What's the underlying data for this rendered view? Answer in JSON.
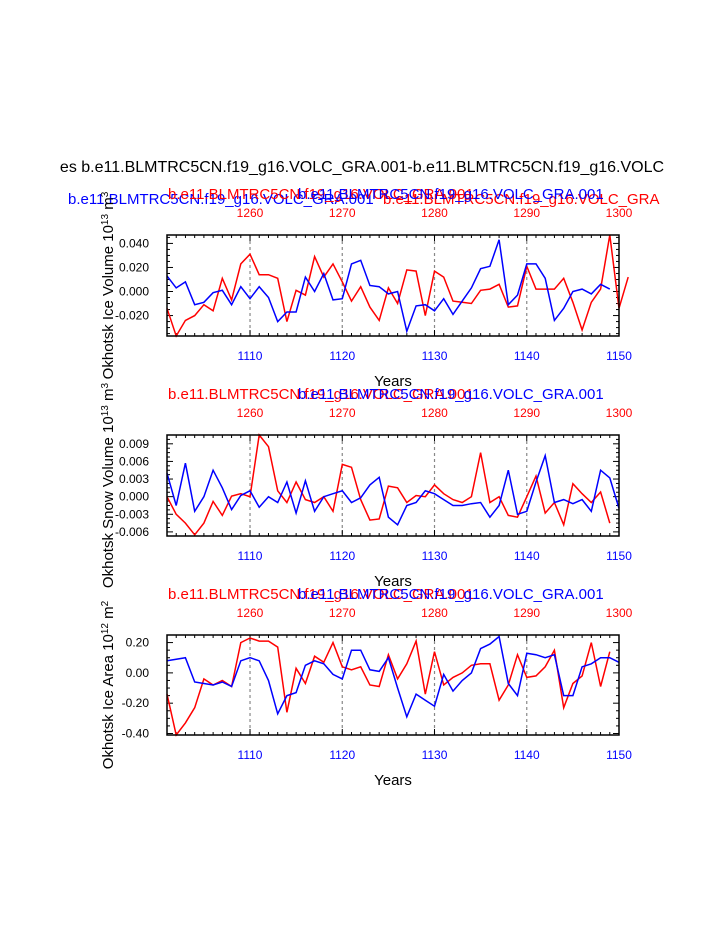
{
  "main_title": "es b.e11.BLMTRC5CN.f19_g16.VOLC_GRA.001-b.e11.BLMTRC5CN.f19_g16.VOLC",
  "overlap_title": {
    "blue": "b.e11.BLMTRC5CN.f19_g16.VOLC_GRA.001",
    "red": "b.e11.BLMTRC5CN.f19_g16.VOLC_GRA"
  },
  "colors": {
    "red_series": "#ff0000",
    "blue_series": "#0000ff",
    "axis": "#000000",
    "grid": "#888888"
  },
  "chart_data": [
    {
      "type": "line",
      "panel": "ice-volume",
      "title_red": "b.e11.BLMTRC5CN.f19_g16.VOLC_GRA.001",
      "title_blue": "b.e11.BLMTRC5CN.f19_g16.VOLC_GRA.001",
      "ylabel_main": "Okhotsk Ice Volume 10",
      "ylabel_exp": "13",
      "ylabel_unit": " m",
      "ylabel_unit_exp": "3",
      "xlabel": "Years",
      "xlim_bottom": [
        1101,
        1150
      ],
      "xlim_top": [
        1251,
        1300
      ],
      "ylim": [
        -0.037,
        0.047
      ],
      "yticks": [
        -0.02,
        0.0,
        0.02,
        0.04
      ],
      "yticklabels": [
        "-0.020",
        "0.000",
        "0.020",
        "0.040"
      ],
      "xticks_bottom": [
        1110,
        1120,
        1130,
        1140,
        1150
      ],
      "xticks_top": [
        1260,
        1270,
        1280,
        1290,
        1300
      ],
      "gridlines": [
        1110,
        1120,
        1130,
        1140
      ],
      "series": [
        {
          "name": "b.e11.BLMTRC5CN.f19_g16.VOLC_GRA.001 (years 1251-1300)",
          "color": "red",
          "axis": "top",
          "values": [
            -0.014,
            -0.037,
            -0.024,
            -0.02,
            -0.011,
            -0.016,
            0.011,
            -0.007,
            0.023,
            0.031,
            0.014,
            0.014,
            0.011,
            -0.025,
            0.001,
            -0.003,
            0.029,
            0.012,
            0.023,
            0.008,
            -0.008,
            0.004,
            -0.013,
            -0.024,
            0.003,
            -0.01,
            0.018,
            0.017,
            -0.02,
            0.017,
            0.012,
            -0.008,
            -0.009,
            -0.01,
            0.001,
            0.002,
            0.006,
            -0.013,
            -0.012,
            0.021,
            0.002,
            0.002,
            0.002,
            0.011,
            -0.009,
            -0.032,
            -0.009,
            0.002,
            0.047,
            -0.014,
            0.012
          ]
        },
        {
          "name": "b.e11.BLMTRC5CN.f19_g16.VOLC_GRA.001 (years 1101-1150)",
          "color": "blue",
          "axis": "bottom",
          "values": [
            0.013,
            0.003,
            0.008,
            -0.011,
            -0.009,
            -0.001,
            0.001,
            -0.011,
            0.004,
            -0.006,
            0.004,
            -0.005,
            -0.025,
            -0.017,
            -0.017,
            0.012,
            0.0,
            0.015,
            -0.007,
            -0.006,
            0.023,
            0.026,
            0.005,
            0.004,
            -0.002,
            0.0,
            -0.033,
            -0.012,
            -0.011,
            -0.016,
            -0.006,
            -0.019,
            -0.008,
            0.003,
            0.019,
            0.021,
            0.043,
            -0.011,
            -0.003,
            0.023,
            0.023,
            0.011,
            -0.024,
            -0.014,
            0.0,
            0.002,
            -0.002,
            0.006,
            0.002
          ]
        }
      ]
    },
    {
      "type": "line",
      "panel": "snow-volume",
      "title_red": "b.e11.BLMTRC5CN.f19_g16.VOLC_GRA.001",
      "title_blue": "b.e11.BLMTRC5CN.f19_g16.VOLC_GRA.001",
      "ylabel_main": "Okhotsk Snow Volume 10",
      "ylabel_exp": "13",
      "ylabel_unit": " m",
      "ylabel_unit_exp": "3",
      "xlabel": "Years",
      "xlim_bottom": [
        1101,
        1150
      ],
      "xlim_top": [
        1251,
        1300
      ],
      "ylim": [
        -0.0067,
        0.0105
      ],
      "yticks": [
        -0.006,
        -0.003,
        0.0,
        0.003,
        0.006,
        0.009
      ],
      "yticklabels": [
        "-0.006",
        "-0.003",
        "0.000",
        "0.003",
        "0.006",
        "0.009"
      ],
      "xticks_bottom": [
        1110,
        1120,
        1130,
        1140,
        1150
      ],
      "xticks_top": [
        1260,
        1270,
        1280,
        1290,
        1300
      ],
      "gridlines": [
        1110,
        1120,
        1130,
        1140
      ],
      "series": [
        {
          "name": "b.e11.BLMTRC5CN.f19_g16.VOLC_GRA.001 (years 1251-1300)",
          "color": "red",
          "axis": "top",
          "values": [
            0.0,
            -0.003,
            -0.0045,
            -0.0065,
            -0.0045,
            -0.0008,
            -0.0032,
            0.0001,
            0.0005,
            0.0,
            0.0105,
            0.0085,
            0.001,
            -0.001,
            0.0025,
            -0.0005,
            -0.001,
            0.0,
            -0.0025,
            0.0055,
            0.005,
            -0.0005,
            -0.004,
            -0.0038,
            0.0018,
            0.0015,
            -0.001,
            0.0002,
            0.0,
            0.002,
            0.0005,
            -0.0005,
            -0.001,
            0.0,
            0.0075,
            -0.001,
            0.0,
            -0.0032,
            -0.0035,
            0.0,
            0.0035,
            -0.0028,
            -0.001,
            -0.0048,
            0.0022,
            0.0005,
            -0.001,
            0.0008,
            -0.0045
          ]
        },
        {
          "name": "b.e11.BLMTRC5CN.f19_g16.VOLC_GRA.001 (years 1101-1150)",
          "color": "blue",
          "axis": "bottom",
          "values": [
            0.004,
            -0.0015,
            0.0057,
            -0.0025,
            0.0,
            0.0045,
            0.0015,
            -0.0022,
            0.0002,
            0.001,
            -0.0018,
            0.0,
            -0.001,
            0.0025,
            -0.0028,
            0.0027,
            -0.0025,
            0.0,
            0.0005,
            0.001,
            -0.001,
            -0.0002,
            0.002,
            0.0033,
            -0.0035,
            -0.0048,
            -0.0015,
            -0.001,
            0.001,
            0.0005,
            -0.0005,
            -0.0015,
            -0.0015,
            -0.0012,
            -0.001,
            -0.0035,
            -0.0015,
            0.0045,
            -0.003,
            -0.0025,
            0.0025,
            0.007,
            -0.001,
            -0.0005,
            -0.0012,
            -0.0005,
            -0.0025,
            0.0045,
            0.0032,
            -0.002
          ]
        }
      ]
    },
    {
      "type": "line",
      "panel": "ice-area",
      "title_red": "b.e11.BLMTRC5CN.f19_g16.VOLC_GRA.001",
      "title_blue": "b.e11.BLMTRC5CN.f19_g16.VOLC_GRA.001",
      "ylabel_main": "Okhotsk Ice Area 10",
      "ylabel_exp": "12",
      "ylabel_unit": " m",
      "ylabel_unit_exp": "2",
      "xlabel": "Years",
      "xlim_bottom": [
        1101,
        1150
      ],
      "xlim_top": [
        1251,
        1300
      ],
      "ylim": [
        -0.41,
        0.25
      ],
      "yticks": [
        -0.4,
        -0.2,
        0.0,
        0.2
      ],
      "yticklabels": [
        "-0.40",
        "-0.20",
        "0.00",
        "0.20"
      ],
      "xticks_bottom": [
        1110,
        1120,
        1130,
        1140,
        1150
      ],
      "xticks_top": [
        1260,
        1270,
        1280,
        1290,
        1300
      ],
      "gridlines": [
        1110,
        1120,
        1130,
        1140
      ],
      "series": [
        {
          "name": "b.e11.BLMTRC5CN.f19_g16.VOLC_GRA.001 (years 1251-1300)",
          "color": "red",
          "axis": "top",
          "values": [
            -0.14,
            -0.41,
            -0.33,
            -0.23,
            -0.04,
            -0.08,
            -0.05,
            -0.09,
            0.2,
            0.23,
            0.21,
            0.21,
            0.17,
            -0.26,
            0.03,
            -0.07,
            0.11,
            0.07,
            0.2,
            0.04,
            0.02,
            0.04,
            -0.08,
            -0.09,
            0.12,
            -0.04,
            0.06,
            0.21,
            -0.14,
            0.14,
            -0.08,
            -0.03,
            0.0,
            0.05,
            0.06,
            0.06,
            -0.18,
            -0.08,
            0.12,
            -0.03,
            -0.02,
            0.04,
            0.15,
            -0.23,
            -0.07,
            -0.02,
            0.2,
            -0.09,
            0.14
          ]
        },
        {
          "name": "b.e11.BLMTRC5CN.f19_g16.VOLC_GRA.001 (years 1101-1150)",
          "color": "blue",
          "axis": "bottom",
          "values": [
            0.08,
            0.09,
            0.1,
            -0.06,
            -0.07,
            -0.08,
            -0.06,
            -0.09,
            0.08,
            0.1,
            0.08,
            -0.05,
            -0.27,
            -0.15,
            -0.13,
            0.05,
            0.08,
            0.06,
            -0.01,
            -0.04,
            0.15,
            0.15,
            0.02,
            0.01,
            0.1,
            -0.1,
            -0.29,
            -0.14,
            -0.18,
            -0.22,
            -0.01,
            -0.12,
            -0.05,
            0.0,
            0.16,
            0.19,
            0.24,
            -0.07,
            -0.15,
            0.13,
            0.12,
            0.1,
            0.12,
            -0.15,
            -0.15,
            0.04,
            0.06,
            0.1,
            0.1,
            0.07
          ]
        }
      ]
    }
  ]
}
